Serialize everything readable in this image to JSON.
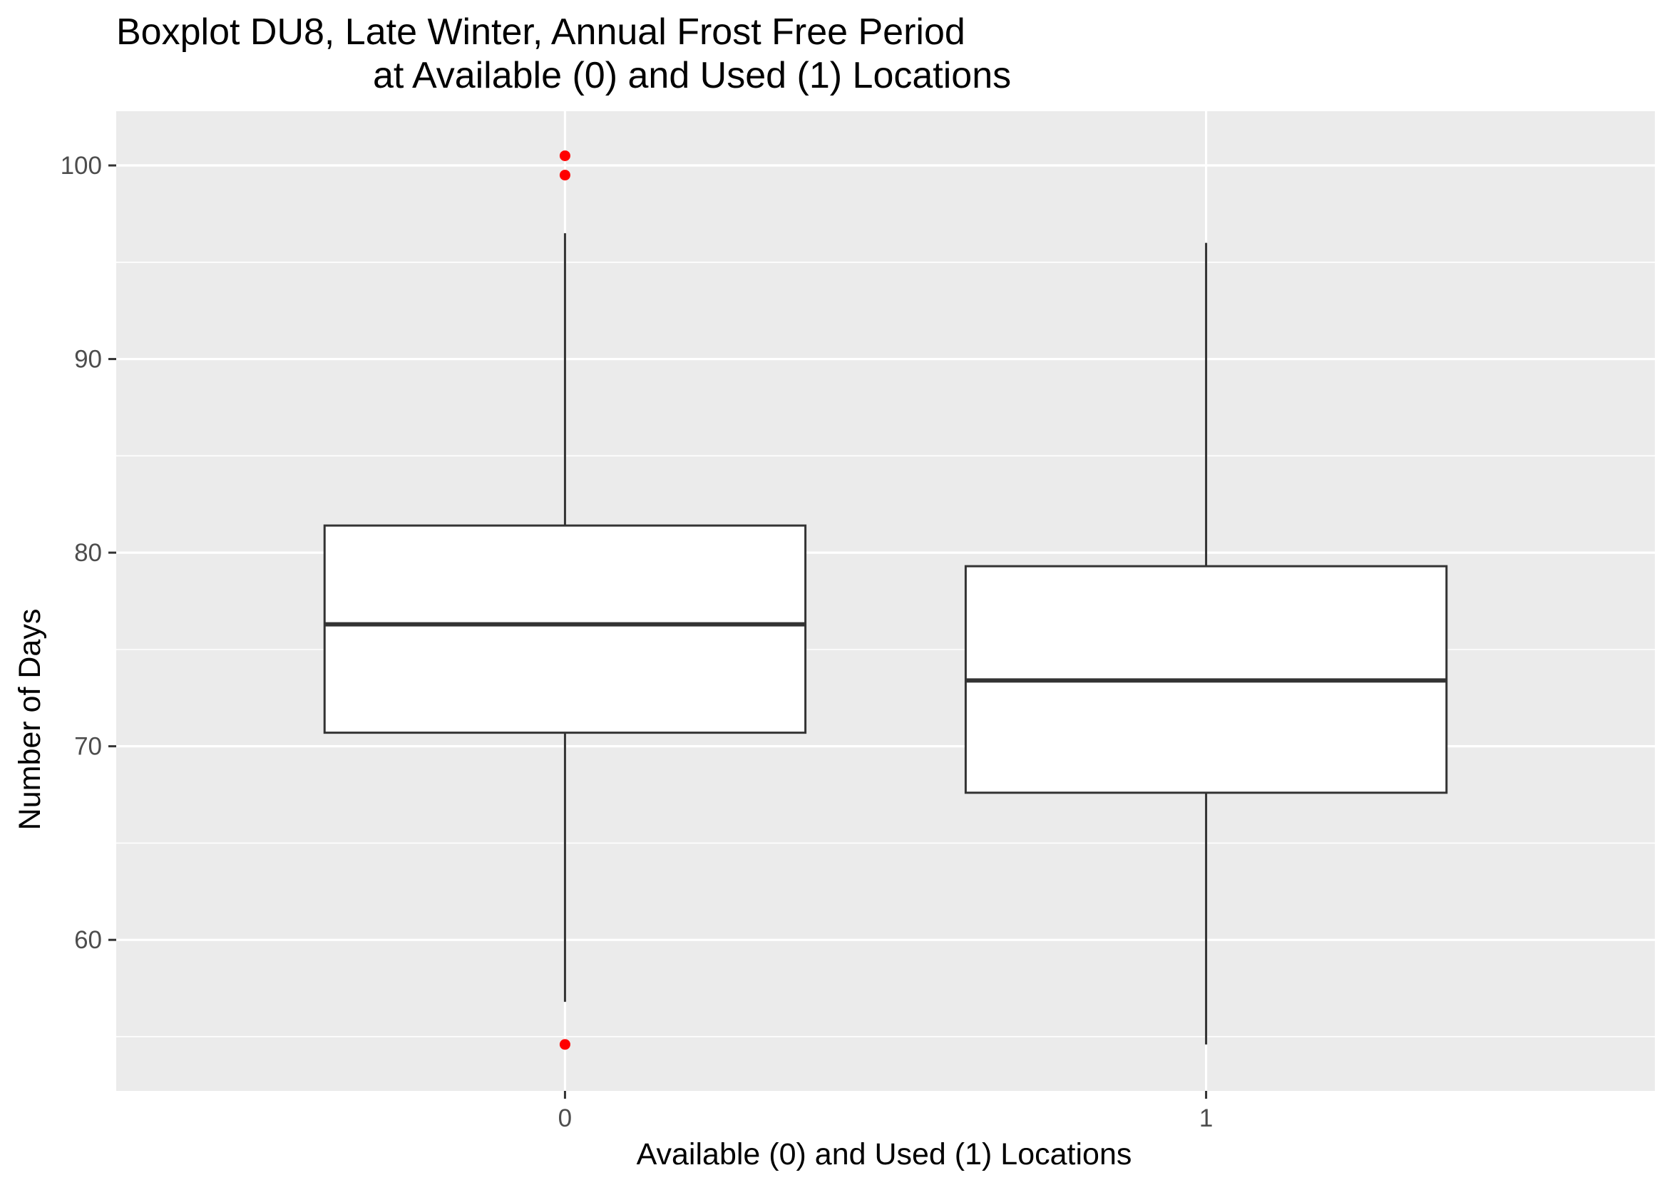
{
  "chart_data": {
    "type": "boxplot",
    "title_lines": [
      "Boxplot DU8, Late Winter, Annual Frost Free Period",
      "at Available (0) and Used (1) Locations"
    ],
    "xlabel": "Available (0) and Used (1) Locations",
    "ylabel": "Number of Days",
    "ylim": [
      52.2,
      102.8
    ],
    "yticks": [
      60,
      70,
      80,
      90,
      100
    ],
    "ytick_labels": [
      "60",
      "70",
      "80",
      "90",
      "100"
    ],
    "categories": [
      "0",
      "1"
    ],
    "boxes": [
      {
        "category": "0",
        "whisker_low": 56.8,
        "q1": 70.7,
        "median": 76.3,
        "q3": 81.4,
        "whisker_high": 96.5,
        "outliers": [
          100.5,
          99.5,
          54.6
        ]
      },
      {
        "category": "1",
        "whisker_low": 54.6,
        "q1": 67.6,
        "median": 73.4,
        "q3": 79.3,
        "whisker_high": 96.0,
        "outliers": []
      }
    ],
    "grid": true,
    "colors": {
      "panel_background": "#ebebeb",
      "grid": "#ffffff",
      "box_fill": "#ffffff",
      "box_stroke": "#333333",
      "outlier": "#ff0000"
    }
  }
}
